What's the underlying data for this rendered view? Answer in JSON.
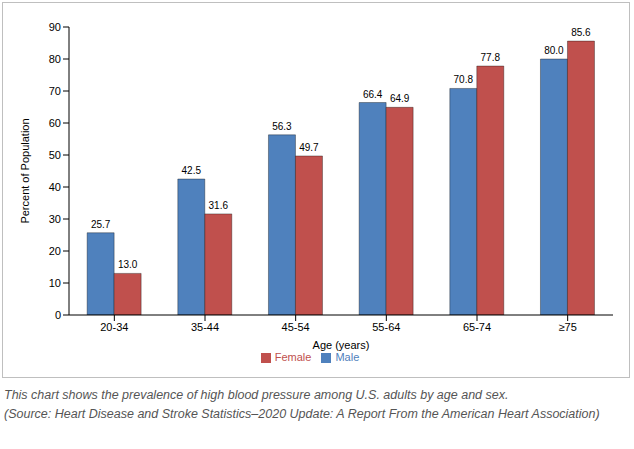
{
  "chart_data": {
    "type": "bar",
    "x_label": "Age (years)",
    "y_label": "Percent of Population",
    "categories": [
      "20-34",
      "35-44",
      "45-54",
      "55-64",
      "65-74",
      "≥75"
    ],
    "series": [
      {
        "name": "Male",
        "color": "#4f81bd",
        "values": [
          25.7,
          42.5,
          56.3,
          66.4,
          70.8,
          80.0
        ],
        "value_labels": [
          "25.7",
          "42.5",
          "56.3",
          "66.4",
          "70.8",
          "80.0"
        ]
      },
      {
        "name": "Female",
        "color": "#c0504d",
        "values": [
          13.0,
          31.6,
          49.7,
          64.9,
          77.8,
          85.6
        ],
        "value_labels": [
          "13.0",
          "31.6",
          "49.7",
          "64.9",
          "77.8",
          "85.6"
        ]
      }
    ],
    "ylim": [
      0,
      90
    ],
    "yticks": [
      0,
      10,
      20,
      30,
      40,
      50,
      60,
      70,
      80,
      90
    ],
    "grid": false,
    "legend": "bottom",
    "data_labels": true,
    "caption": [
      "This chart shows the prevalence of high blood pressure among U.S. adults by age and sex.",
      "(Source: Heart Disease and Stroke Statistics–2020 Update: A Report From the American Heart Association)"
    ]
  }
}
